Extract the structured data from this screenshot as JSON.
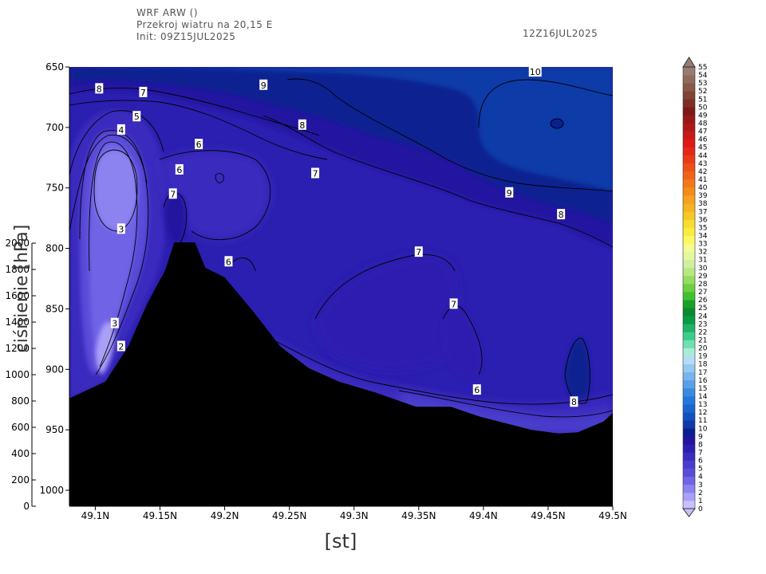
{
  "header": {
    "line1": "WRF ARW ()",
    "line2": "Przekroj wiatru na 20,15 E",
    "line3": "Init: 09Z15JUL2025",
    "valid": "12Z16JUL2025"
  },
  "chart_data": {
    "type": "heatmap",
    "title": "Przekroj wiatru na 20,15 E",
    "xlabel": "[st]",
    "ylabel": "ciśnienie [hPa]",
    "xlim": [
      49.08,
      49.5
    ],
    "ylim": [
      650,
      1000
    ],
    "x_ticks": [
      {
        "value": 49.1,
        "label": "49.1N"
      },
      {
        "value": 49.15,
        "label": "49.15N"
      },
      {
        "value": 49.2,
        "label": "49.2N"
      },
      {
        "value": 49.25,
        "label": "49.25N"
      },
      {
        "value": 49.3,
        "label": "49.3N"
      },
      {
        "value": 49.35,
        "label": "49.35N"
      },
      {
        "value": 49.4,
        "label": "49.4N"
      },
      {
        "value": 49.45,
        "label": "49.45N"
      },
      {
        "value": 49.5,
        "label": "49.5N"
      }
    ],
    "y_ticks": [
      {
        "value": 650,
        "label": "650"
      },
      {
        "value": 700,
        "label": "700"
      },
      {
        "value": 750,
        "label": "750"
      },
      {
        "value": 800,
        "label": "800"
      },
      {
        "value": 850,
        "label": "850"
      },
      {
        "value": 900,
        "label": "900"
      },
      {
        "value": 950,
        "label": "950"
      },
      {
        "value": 1000,
        "label": "1000"
      }
    ],
    "terrain_axis": {
      "ticks": [
        0,
        200,
        400,
        600,
        800,
        1000,
        1200,
        1400,
        1600,
        1800,
        2000
      ],
      "labels": [
        "0",
        "200",
        "400",
        "600",
        "800",
        "1000",
        "1200",
        "1400",
        "1600",
        "1800",
        "2000"
      ]
    },
    "colorbar": {
      "levels": [
        0,
        1,
        2,
        3,
        4,
        5,
        6,
        7,
        8,
        9,
        10,
        11,
        12,
        13,
        14,
        15,
        16,
        17,
        18,
        19,
        20,
        21,
        22,
        23,
        24,
        25,
        26,
        27,
        28,
        29,
        30,
        31,
        32,
        33,
        34,
        35,
        36,
        37,
        38,
        39,
        40,
        41,
        42,
        43,
        44,
        45,
        46,
        47,
        48,
        49,
        50,
        51,
        52,
        53,
        54,
        55
      ],
      "colors": [
        "#c8c0ff",
        "#aaa0f8",
        "#8c82f0",
        "#7064e6",
        "#5a4cd8",
        "#4a3ccc",
        "#3a2cbe",
        "#2e1eb0",
        "#2414a0",
        "#0a2090",
        "#0f3aa8",
        "#1450c0",
        "#1a66d0",
        "#2478d8",
        "#3a8ae0",
        "#5aa0e8",
        "#78b4ee",
        "#96c8f4",
        "#b4dcf8",
        "#a8ecd8",
        "#70e0b0",
        "#3ccc8c",
        "#1eb464",
        "#0a9a44",
        "#0a8a30",
        "#1aa028",
        "#40c030",
        "#6cd040",
        "#96dc60",
        "#b8e880",
        "#d0f0a0",
        "#e4f8a0",
        "#f4fc90",
        "#fcf860",
        "#f8ec40",
        "#f8dc30",
        "#f4c828",
        "#f4b420",
        "#f4a020",
        "#f48c18",
        "#f47818",
        "#f06418",
        "#ec5018",
        "#e83c18",
        "#e42818",
        "#e01818",
        "#c81818",
        "#b01818",
        "#981818",
        "#801818",
        "#7c3024",
        "#804434",
        "#885848",
        "#8c6c5c",
        "#987c70"
      ]
    },
    "contour_labels": [
      {
        "x": 49.103,
        "p": 668,
        "label": "8"
      },
      {
        "x": 49.137,
        "p": 671,
        "label": "7"
      },
      {
        "x": 49.23,
        "p": 665,
        "label": "9"
      },
      {
        "x": 49.44,
        "p": 654,
        "label": "10"
      },
      {
        "x": 49.132,
        "p": 691,
        "label": "5"
      },
      {
        "x": 49.12,
        "p": 702,
        "label": "4"
      },
      {
        "x": 49.26,
        "p": 698,
        "label": "8"
      },
      {
        "x": 49.18,
        "p": 714,
        "label": "6"
      },
      {
        "x": 49.165,
        "p": 735,
        "label": "6"
      },
      {
        "x": 49.16,
        "p": 755,
        "label": "7"
      },
      {
        "x": 49.27,
        "p": 738,
        "label": "7"
      },
      {
        "x": 49.42,
        "p": 754,
        "label": "9"
      },
      {
        "x": 49.46,
        "p": 772,
        "label": "8"
      },
      {
        "x": 49.12,
        "p": 784,
        "label": "3"
      },
      {
        "x": 49.35,
        "p": 803,
        "label": "7"
      },
      {
        "x": 49.203,
        "p": 811,
        "label": "6"
      },
      {
        "x": 49.377,
        "p": 846,
        "label": "7"
      },
      {
        "x": 49.115,
        "p": 862,
        "label": "3"
      },
      {
        "x": 49.12,
        "p": 881,
        "label": "2"
      },
      {
        "x": 49.395,
        "p": 917,
        "label": "6"
      },
      {
        "x": 49.47,
        "p": 927,
        "label": "8"
      }
    ],
    "terrain_profile": [
      {
        "x": 49.08,
        "p": 924
      },
      {
        "x": 49.092,
        "p": 918
      },
      {
        "x": 49.108,
        "p": 910
      },
      {
        "x": 49.126,
        "p": 880
      },
      {
        "x": 49.14,
        "p": 846
      },
      {
        "x": 49.154,
        "p": 818
      },
      {
        "x": 49.161,
        "p": 795
      },
      {
        "x": 49.177,
        "p": 795
      },
      {
        "x": 49.185,
        "p": 816
      },
      {
        "x": 49.2,
        "p": 824
      },
      {
        "x": 49.222,
        "p": 852
      },
      {
        "x": 49.243,
        "p": 881
      },
      {
        "x": 49.265,
        "p": 899
      },
      {
        "x": 49.288,
        "p": 910
      },
      {
        "x": 49.316,
        "p": 919
      },
      {
        "x": 49.348,
        "p": 931
      },
      {
        "x": 49.375,
        "p": 931
      },
      {
        "x": 49.397,
        "p": 939
      },
      {
        "x": 49.437,
        "p": 950
      },
      {
        "x": 49.458,
        "p": 953
      },
      {
        "x": 49.473,
        "p": 952
      },
      {
        "x": 49.493,
        "p": 943
      },
      {
        "x": 49.5,
        "p": 936
      }
    ]
  }
}
